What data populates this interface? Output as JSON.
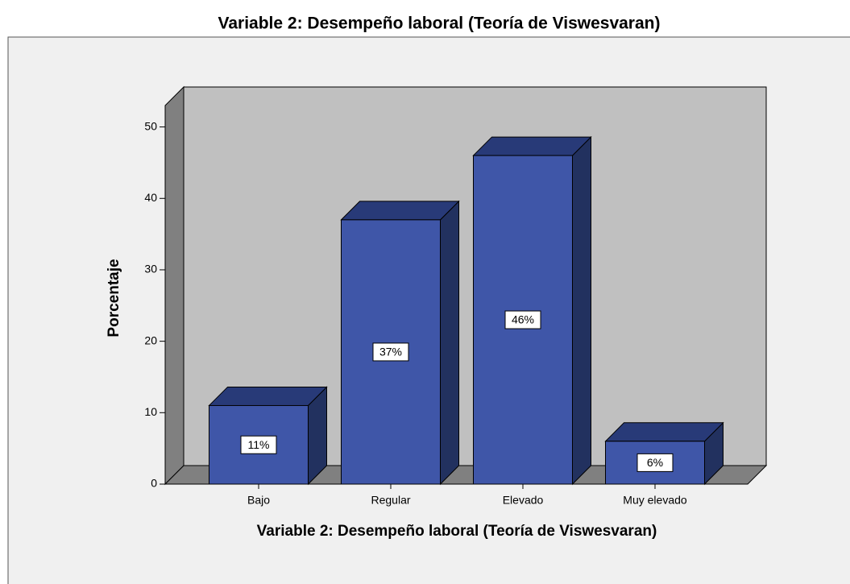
{
  "chart_data": {
    "type": "bar3d",
    "title": "Variable 2: Desempeño laboral (Teoría de Viswesvaran)",
    "x_label": "Variable 2: Desempeño laboral (Teoría de Viswesvaran)",
    "y_label": "Porcentaje",
    "categories": [
      "Bajo",
      "Regular",
      "Elevado",
      "Muy elevado"
    ],
    "values": [
      11,
      37,
      46,
      6
    ],
    "value_labels": [
      "11%",
      "37%",
      "46%",
      "6%"
    ],
    "color": "#3f56a8",
    "ylim": [
      0,
      53
    ],
    "yticks": [
      0,
      10,
      20,
      30,
      40,
      50
    ]
  }
}
